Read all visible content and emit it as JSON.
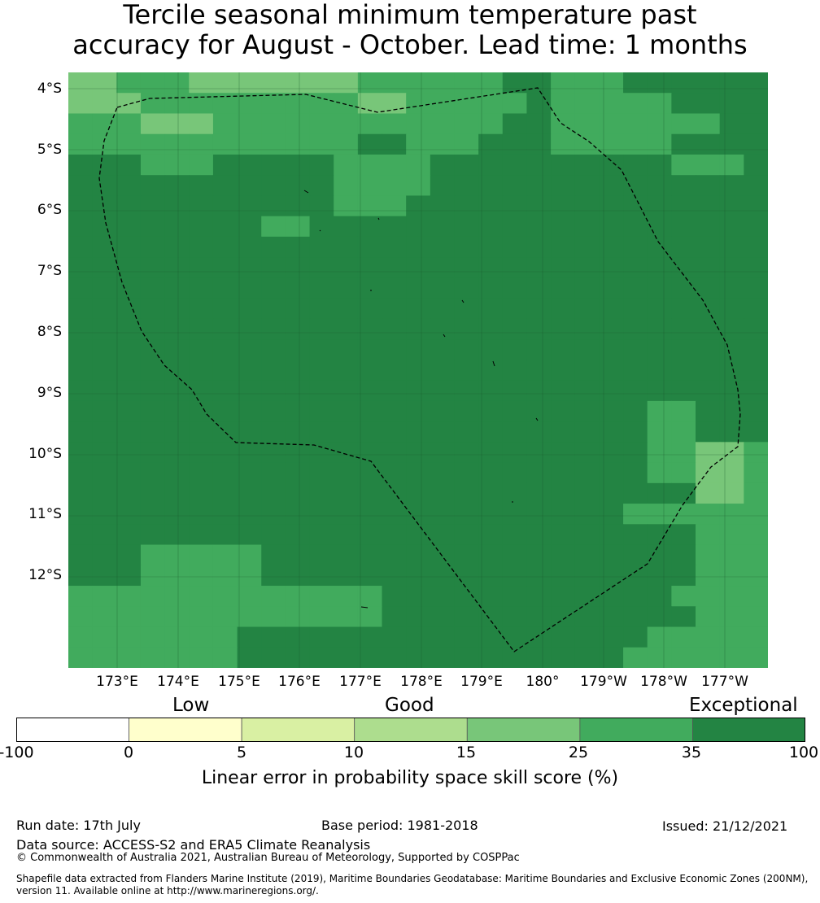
{
  "title_line1": "Tercile seasonal minimum temperature past",
  "title_line2": "accuracy for August - October. Lead time: 1 months",
  "latitude_labels": [
    "4°S",
    "5°S",
    "6°S",
    "7°S",
    "8°S",
    "9°S",
    "10°S",
    "11°S",
    "12°S"
  ],
  "longitude_labels": [
    "173°E",
    "174°E",
    "175°E",
    "176°E",
    "177°E",
    "178°E",
    "179°E",
    "180°",
    "179°W",
    "178°W",
    "177°W"
  ],
  "category_labels": {
    "low": "Low",
    "good": "Good",
    "exceptional": "Exceptional"
  },
  "colorbar": {
    "ticks": [
      "-100",
      "0",
      "5",
      "10",
      "15",
      "25",
      "35",
      "100"
    ],
    "colors": [
      "#ffffff",
      "#ffffcc",
      "#d9f0a3",
      "#addd8e",
      "#78c679",
      "#41ab5d",
      "#238443"
    ],
    "label": "Linear error in probability space skill score (%)"
  },
  "footer": {
    "run_date": "Run date: 17th July",
    "base_period": "Base period: 1981-2018",
    "issued": "Issued: 21/12/2021",
    "data_source": "Data source: ACCESS-S2 and ERA5 Climate Reanalysis",
    "copyright": "© Commonwealth of Australia 2021, Australian Bureau of Meteorology, Supported by COSPPac",
    "shapefile_line1": "Shapefile data extracted from Flanders Marine Institute (2019), Maritime Boundaries Geodatabase: Maritime Boundaries and Exclusive Economic Zones (200NM),",
    "shapefile_line2": "version 11. Available online at http://www.marineregions.org/."
  },
  "grid_legend": {
    "dark": "#238443",
    "medium": "#41ab5d",
    "light": "#78c679"
  },
  "grid": [
    "LLMMMLLLLLLLMMMMMMDDMMMDDDDDD",
    "LLLMMMMMMMMMLLMMMMMDMMMMMDDDD",
    "MMMLLLMMMMMMMMMMMMDDMMMMMMMDD",
    "MMMMMMMMMMMMDDMMMDDDMMMMMDDDD",
    "DDDMMMDDDDDMMMMDDDDDDDDDDMMMD",
    "DDDDDDDDDDDMMMMDDDDDDDDDDDDDD",
    "DDDDDDDDDDDMMMDDDDDDDDDDDDDDD",
    "DDDDDDDDMMDDDDDDDDDDDDDDDDDDD",
    "DDDDDDDDDDDDDDDDDDDDDDDDDDDDD",
    "DDDDDDDDDDDDDDDDDDDDDDDDDDDDD",
    "DDDDDDDDDDDDDDDDDDDDDDDDDDDDD",
    "DDDDDDDDDDDDDDDDDDDDDDDDDDDDD",
    "DDDDDDDDDDDDDDDDDDDDDDDDDDDDD",
    "DDDDDDDDDDDDDDDDDDDDDDDDDDDDD",
    "DDDDDDDDDDDDDDDDDDDDDDDDDDDDD",
    "DDDDDDDDDDDDDDDDDDDDDDDDDDDDD",
    "DDDDDDDDDDDDDDDDDDDDDDDDMMDDD",
    "DDDDDDDDDDDDDDDDDDDDDDDDMMDDD",
    "DDDDDDDDDDDDDDDDDDDDDDDDMMLLM",
    "DDDDDDDDDDDDDDDDDDDDDDDDMMLLM",
    "DDDDDDDDDDDDDDDDDDDDDDDDDDLLM",
    "DDDDDDDDDDDDDDDDDDDDDDDMMMMMM",
    "DDDDDDDDDDDDDDDDDDDDDDDDDDMMM",
    "DDDMMMMMDDDDDDDDDDDDDDDDDDMMM",
    "DDDMMMMMDDDDDDDDDDDDDDDDDDMMM",
    "MMMMMMMMMMMMMDDDDDDDDDDDDMMMM",
    "MMMMMMMMMMMMMDDDDDDDDDDDDDMMM",
    "MMMMMMMDDDDDDDDDDDDDDDDDMMMMM",
    "MMMMMMMDDDDDDDDDDDDDDDDMMMMMM"
  ]
}
